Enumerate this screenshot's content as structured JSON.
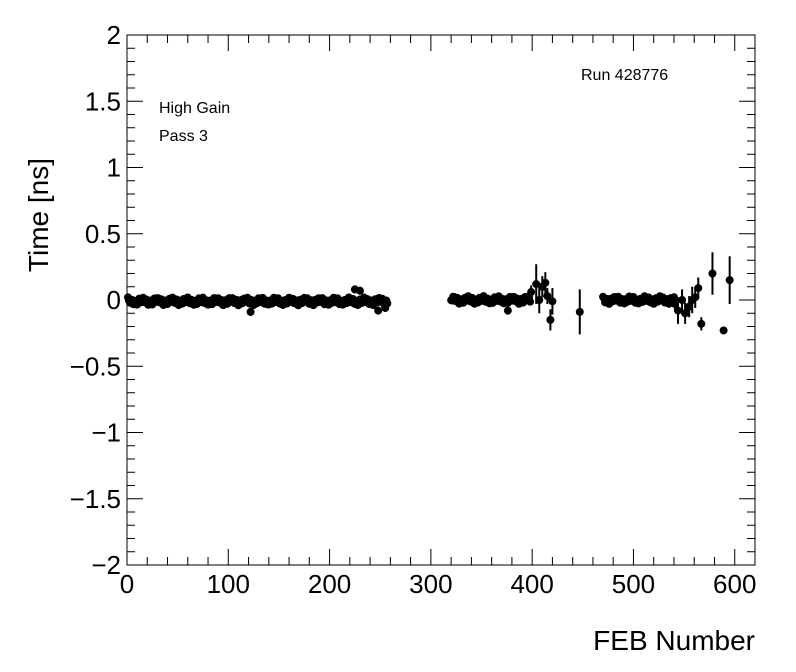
{
  "chart_data": {
    "type": "scatter",
    "xlabel": "FEB Number",
    "ylabel": "Time [ns]",
    "xlim": [
      0,
      620
    ],
    "ylim": [
      -2,
      2
    ],
    "x_ticks": [
      {
        "value": 0,
        "label": "0"
      },
      {
        "value": 100,
        "label": "100"
      },
      {
        "value": 200,
        "label": "200"
      },
      {
        "value": 300,
        "label": "300"
      },
      {
        "value": 400,
        "label": "400"
      },
      {
        "value": 500,
        "label": "500"
      },
      {
        "value": 600,
        "label": "600"
      }
    ],
    "y_ticks": [
      {
        "value": 2,
        "label": "2"
      },
      {
        "value": 1.5,
        "label": "1.5"
      },
      {
        "value": 1,
        "label": "1"
      },
      {
        "value": 0.5,
        "label": "0.5"
      },
      {
        "value": 0,
        "label": "0"
      },
      {
        "value": -0.5,
        "label": "−0.5"
      },
      {
        "value": -1,
        "label": "−1"
      },
      {
        "value": -1.5,
        "label": "−1.5"
      },
      {
        "value": -2,
        "label": "−2"
      }
    ],
    "grid": false,
    "annotations": {
      "gain": "High Gain",
      "pass": "Pass 3",
      "run": "Run 428776"
    },
    "point_groups": [
      {
        "x_start": 1,
        "x_end": 257,
        "baseline": -0.01,
        "amplitude": 0.03,
        "error": 0.02
      },
      {
        "x_start": 320,
        "x_end": 398,
        "baseline": 0.0,
        "amplitude": 0.03,
        "error": 0.02
      },
      {
        "x_start": 470,
        "x_end": 540,
        "baseline": 0.0,
        "amplitude": 0.03,
        "error": 0.02
      }
    ],
    "points": [
      {
        "x": 225,
        "y": 0.08,
        "err": 0.03
      },
      {
        "x": 230,
        "y": 0.07,
        "err": 0.03
      },
      {
        "x": 122,
        "y": -0.09,
        "err": 0.03
      },
      {
        "x": 248,
        "y": -0.08,
        "err": 0.03
      },
      {
        "x": 255,
        "y": -0.06,
        "err": 0.03
      },
      {
        "x": 376,
        "y": -0.08,
        "err": 0.03
      },
      {
        "x": 399,
        "y": 0.06,
        "err": 0.05
      },
      {
        "x": 404,
        "y": 0.12,
        "err": 0.15
      },
      {
        "x": 407,
        "y": 0.0,
        "err": 0.1
      },
      {
        "x": 410,
        "y": 0.1,
        "err": 0.08
      },
      {
        "x": 413,
        "y": 0.13,
        "err": 0.08
      },
      {
        "x": 415,
        "y": 0.03,
        "err": 0.06
      },
      {
        "x": 418,
        "y": -0.15,
        "err": 0.08
      },
      {
        "x": 420,
        "y": -0.01,
        "err": 0.1
      },
      {
        "x": 447,
        "y": -0.09,
        "err": 0.17
      },
      {
        "x": 541,
        "y": -0.03,
        "err": 0.06
      },
      {
        "x": 544,
        "y": -0.08,
        "err": 0.1
      },
      {
        "x": 548,
        "y": 0.0,
        "err": 0.08
      },
      {
        "x": 551,
        "y": -0.1,
        "err": 0.08
      },
      {
        "x": 555,
        "y": -0.05,
        "err": 0.08
      },
      {
        "x": 558,
        "y": 0.0,
        "err": 0.1
      },
      {
        "x": 561,
        "y": 0.02,
        "err": 0.08
      },
      {
        "x": 564,
        "y": 0.09,
        "err": 0.08
      },
      {
        "x": 567,
        "y": -0.18,
        "err": 0.05
      },
      {
        "x": 578,
        "y": 0.2,
        "err": 0.16
      },
      {
        "x": 589,
        "y": -0.23,
        "err": 0.03
      },
      {
        "x": 595,
        "y": 0.15,
        "err": 0.18
      }
    ]
  }
}
